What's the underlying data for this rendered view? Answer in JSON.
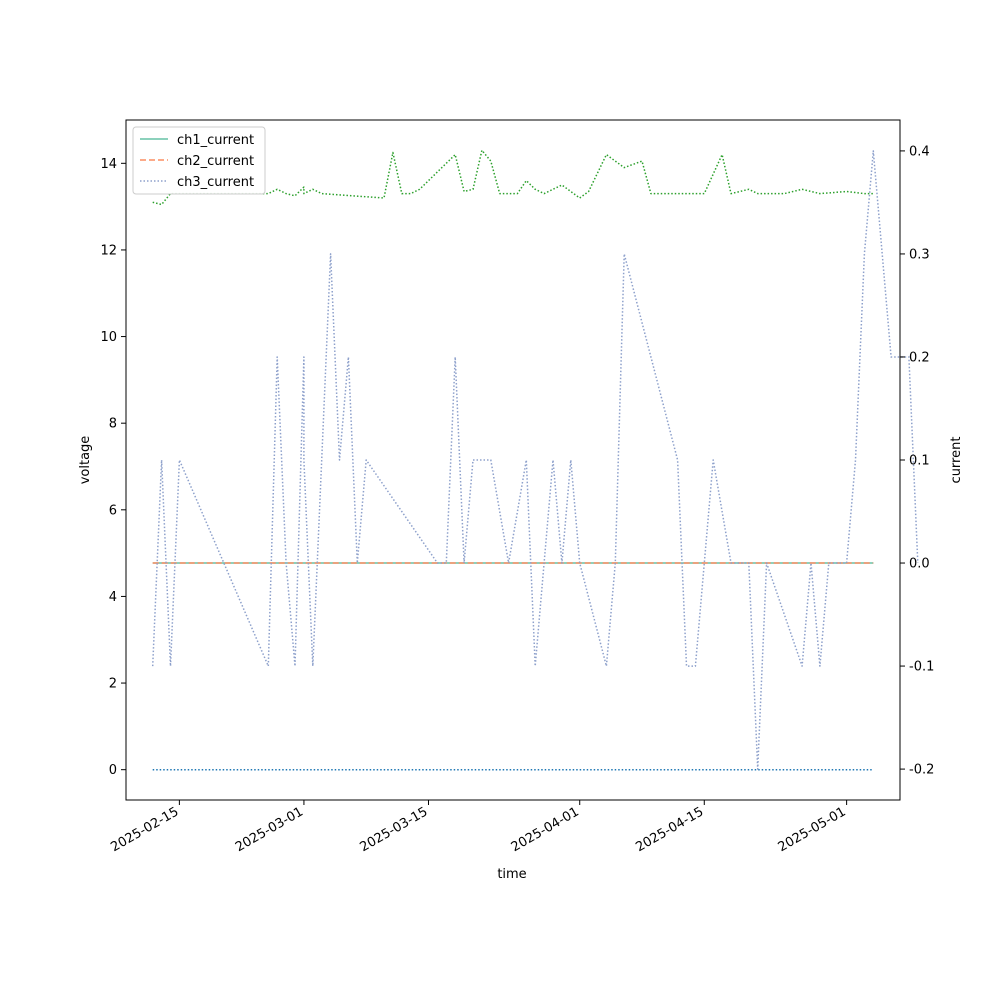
{
  "chart_data": {
    "type": "line",
    "xlabel": "time",
    "ylabel_left": "voltage",
    "ylabel_right": "current",
    "xlim": [
      "2025-02-09",
      "2025-05-07"
    ],
    "ylim_left": [
      -0.7,
      15.0
    ],
    "ylim_right": [
      -0.23,
      0.43
    ],
    "x_ticks": [
      "2025-02-15",
      "2025-03-01",
      "2025-03-15",
      "2025-04-01",
      "2025-04-15",
      "2025-05-01"
    ],
    "y_ticks_left": [
      0,
      2,
      4,
      6,
      8,
      10,
      12,
      14
    ],
    "y_ticks_right": [
      -0.2,
      -0.1,
      0.0,
      0.1,
      0.2,
      0.3,
      0.4
    ],
    "grid": false,
    "legend_position": "top-left",
    "legend": [
      {
        "label": "ch1_current",
        "color": "#66c2a5",
        "dash": "solid"
      },
      {
        "label": "ch2_current",
        "color": "#fc8d62",
        "dash": "dashed"
      },
      {
        "label": "ch3_current",
        "color": "#8da0cb",
        "dash": "dotted"
      }
    ],
    "series": [
      {
        "axis": "left",
        "color": "#2ca02c",
        "dash": "dotted",
        "points": [
          [
            "2025-02-12",
            13.1
          ],
          [
            "2025-02-13",
            13.05
          ],
          [
            "2025-02-14",
            13.3
          ],
          [
            "2025-02-25",
            13.3
          ],
          [
            "2025-02-26",
            13.4
          ],
          [
            "2025-02-27",
            13.3
          ],
          [
            "2025-02-28",
            13.25
          ],
          [
            "2025-02-29",
            13.45
          ],
          [
            "2025-03-01",
            13.3
          ],
          [
            "2025-03-02",
            13.4
          ],
          [
            "2025-03-03",
            13.3
          ],
          [
            "2025-03-10",
            13.2
          ],
          [
            "2025-03-11",
            14.25
          ],
          [
            "2025-03-12",
            13.3
          ],
          [
            "2025-03-13",
            13.3
          ],
          [
            "2025-03-14",
            13.4
          ],
          [
            "2025-03-18",
            14.2
          ],
          [
            "2025-03-19",
            13.35
          ],
          [
            "2025-03-20",
            13.4
          ],
          [
            "2025-03-21",
            14.3
          ],
          [
            "2025-03-22",
            14.05
          ],
          [
            "2025-03-23",
            13.3
          ],
          [
            "2025-03-25",
            13.3
          ],
          [
            "2025-03-26",
            13.6
          ],
          [
            "2025-03-27",
            13.4
          ],
          [
            "2025-03-28",
            13.3
          ],
          [
            "2025-03-30",
            13.5
          ],
          [
            "2025-04-01",
            13.2
          ],
          [
            "2025-04-02",
            13.35
          ],
          [
            "2025-04-04",
            14.2
          ],
          [
            "2025-04-06",
            13.9
          ],
          [
            "2025-04-08",
            14.05
          ],
          [
            "2025-04-09",
            13.3
          ],
          [
            "2025-04-15",
            13.3
          ],
          [
            "2025-04-17",
            14.2
          ],
          [
            "2025-04-18",
            13.3
          ],
          [
            "2025-04-19",
            13.35
          ],
          [
            "2025-04-20",
            13.4
          ],
          [
            "2025-04-21",
            13.3
          ],
          [
            "2025-04-24",
            13.3
          ],
          [
            "2025-04-26",
            13.4
          ],
          [
            "2025-04-28",
            13.3
          ],
          [
            "2025-05-01",
            13.35
          ],
          [
            "2025-05-03",
            13.3
          ],
          [
            "2025-05-04",
            13.3
          ]
        ]
      },
      {
        "axis": "left",
        "color": "#1f77b4",
        "dash": "dotted",
        "points": [
          [
            "2025-02-12",
            0.0
          ],
          [
            "2025-05-04",
            0.0
          ]
        ]
      },
      {
        "label": "ch1_current",
        "axis": "right",
        "color": "#66c2a5",
        "dash": "solid",
        "points": [
          [
            "2025-02-12",
            0.0
          ],
          [
            "2025-05-04",
            0.0
          ]
        ]
      },
      {
        "label": "ch2_current",
        "axis": "right",
        "color": "#fc8d62",
        "dash": "dashed",
        "points": [
          [
            "2025-02-12",
            0.0
          ],
          [
            "2025-05-04",
            0.0
          ]
        ]
      },
      {
        "label": "ch3_current",
        "axis": "right",
        "color": "#8da0cb",
        "dash": "dotted",
        "points": [
          [
            "2025-02-12",
            -0.1
          ],
          [
            "2025-02-13",
            0.1
          ],
          [
            "2025-02-14",
            -0.1
          ],
          [
            "2025-02-15",
            0.1
          ],
          [
            "2025-02-25",
            -0.1
          ],
          [
            "2025-02-26",
            0.2
          ],
          [
            "2025-02-27",
            0.0
          ],
          [
            "2025-02-28",
            -0.1
          ],
          [
            "2025-02-29",
            0.2
          ],
          [
            "2025-03-01",
            0.1
          ],
          [
            "2025-03-02",
            -0.1
          ],
          [
            "2025-03-03",
            0.1
          ],
          [
            "2025-03-04",
            0.3
          ],
          [
            "2025-03-05",
            0.1
          ],
          [
            "2025-03-06",
            0.2
          ],
          [
            "2025-03-07",
            0.0
          ],
          [
            "2025-03-08",
            0.1
          ],
          [
            "2025-03-16",
            0.0
          ],
          [
            "2025-03-17",
            0.0
          ],
          [
            "2025-03-18",
            0.2
          ],
          [
            "2025-03-19",
            0.0
          ],
          [
            "2025-03-20",
            0.1
          ],
          [
            "2025-03-22",
            0.1
          ],
          [
            "2025-03-24",
            0.0
          ],
          [
            "2025-03-26",
            0.1
          ],
          [
            "2025-03-27",
            -0.1
          ],
          [
            "2025-03-29",
            0.1
          ],
          [
            "2025-03-30",
            0.0
          ],
          [
            "2025-03-31",
            0.1
          ],
          [
            "2025-04-01",
            0.0
          ],
          [
            "2025-04-04",
            -0.1
          ],
          [
            "2025-04-05",
            0.0
          ],
          [
            "2025-04-06",
            0.3
          ],
          [
            "2025-04-12",
            0.1
          ],
          [
            "2025-04-13",
            -0.1
          ],
          [
            "2025-04-14",
            -0.1
          ],
          [
            "2025-04-16",
            0.1
          ],
          [
            "2025-04-18",
            0.0
          ],
          [
            "2025-04-20",
            0.0
          ],
          [
            "2025-04-21",
            -0.2
          ],
          [
            "2025-04-22",
            0.0
          ],
          [
            "2025-04-26",
            -0.1
          ],
          [
            "2025-04-27",
            0.0
          ],
          [
            "2025-04-28",
            -0.1
          ],
          [
            "2025-04-29",
            0.0
          ],
          [
            "2025-05-01",
            0.0
          ],
          [
            "2025-05-02",
            0.1
          ],
          [
            "2025-05-03",
            0.3
          ],
          [
            "2025-05-04",
            0.4
          ],
          [
            "2025-05-05",
            0.3
          ],
          [
            "2025-05-06",
            0.2
          ],
          [
            "2025-05-07",
            0.2
          ],
          [
            "2025-05-08",
            0.2
          ],
          [
            "2025-05-09",
            0.0
          ]
        ]
      }
    ]
  }
}
